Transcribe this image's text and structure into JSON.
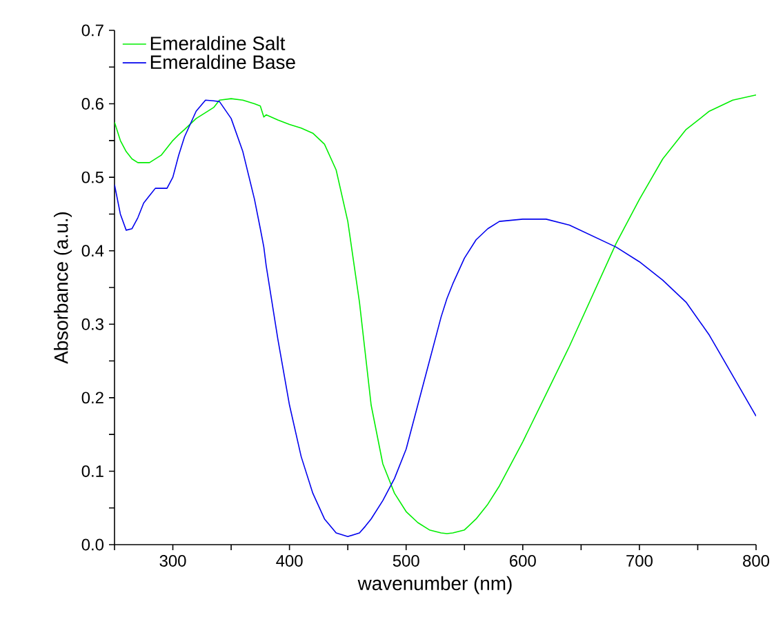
{
  "chart_data": {
    "type": "line",
    "xlabel": "wavenumber (nm)",
    "ylabel": "Absorbance (a.u.)",
    "xlim": [
      250,
      800
    ],
    "ylim": [
      0,
      0.7
    ],
    "xticks": [
      {
        "value": 250,
        "label": null
      },
      300,
      {
        "value": 350,
        "label": null
      },
      400,
      {
        "value": 450,
        "label": null
      },
      500,
      {
        "value": 550,
        "label": null
      },
      600,
      {
        "value": 650,
        "label": null
      },
      700,
      {
        "value": 750,
        "label": null
      },
      800
    ],
    "yticks": [
      {
        "value": 0,
        "label": "0.0"
      },
      {
        "value": 0.05,
        "label": null
      },
      0.1,
      {
        "value": 0.15,
        "label": null
      },
      0.2,
      {
        "value": 0.25,
        "label": null
      },
      0.3,
      {
        "value": 0.35,
        "label": null
      },
      0.4,
      {
        "value": 0.45,
        "label": null
      },
      0.5,
      {
        "value": 0.55,
        "label": null
      },
      0.6,
      {
        "value": 0.65,
        "label": null
      },
      0.7
    ],
    "legend": "top left",
    "grid": false,
    "marker": "none",
    "line_style": "solid",
    "x": [
      250,
      255,
      260,
      265,
      270,
      275,
      280,
      285,
      290,
      295,
      300,
      305,
      310,
      320,
      328,
      335,
      340,
      350,
      360,
      370,
      375,
      378,
      380,
      390,
      400,
      410,
      420,
      430,
      440,
      450,
      460,
      465,
      470,
      480,
      490,
      500,
      510,
      520,
      530,
      535,
      540,
      550,
      560,
      570,
      580,
      600,
      620,
      640,
      660,
      680,
      700,
      720,
      740,
      760,
      780,
      800
    ],
    "series": [
      {
        "name": "Emeraldine Salt",
        "color": "#00ee00",
        "values": [
          0.575,
          0.55,
          0.535,
          0.525,
          0.52,
          0.52,
          0.52,
          0.525,
          0.53,
          0.54,
          0.55,
          0.558,
          0.565,
          0.58,
          0.588,
          0.595,
          0.605,
          0.607,
          0.605,
          0.6,
          0.597,
          0.582,
          0.585,
          0.578,
          0.572,
          0.567,
          0.56,
          0.545,
          0.51,
          0.44,
          0.33,
          0.26,
          0.19,
          0.11,
          0.07,
          0.045,
          0.03,
          0.02,
          0.016,
          0.015,
          0.016,
          0.02,
          0.035,
          0.055,
          0.08,
          0.14,
          0.205,
          0.27,
          0.34,
          0.41,
          0.47,
          0.525,
          0.565,
          0.59,
          0.605,
          0.612
        ]
      },
      {
        "name": "Emeraldine Base",
        "color": "#0000ee",
        "values": [
          0.49,
          0.45,
          0.428,
          0.43,
          0.445,
          0.465,
          0.475,
          0.485,
          0.485,
          0.485,
          0.5,
          0.53,
          0.555,
          0.59,
          0.605,
          0.604,
          0.603,
          0.58,
          0.535,
          0.47,
          0.43,
          0.405,
          0.38,
          0.28,
          0.19,
          0.12,
          0.07,
          0.035,
          0.016,
          0.011,
          0.016,
          0.025,
          0.035,
          0.06,
          0.09,
          0.13,
          0.19,
          0.25,
          0.31,
          0.335,
          0.355,
          0.39,
          0.415,
          0.43,
          0.44,
          0.443,
          0.443,
          0.435,
          0.42,
          0.405,
          0.385,
          0.36,
          0.33,
          0.285,
          0.23,
          0.175
        ]
      }
    ]
  }
}
